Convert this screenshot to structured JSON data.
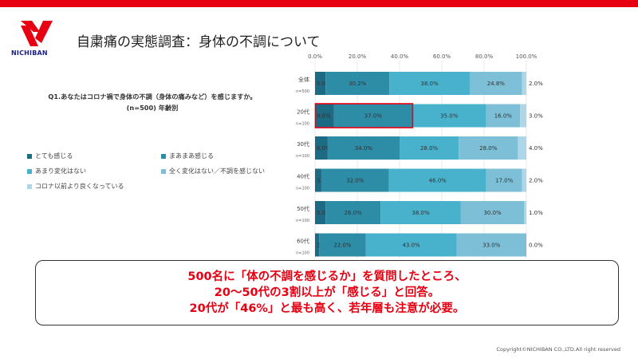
{
  "header": {
    "title": "自粛痛の実態調査：身体の不調について",
    "logo_text": "NICHIBAN",
    "accent_color": "#e60012",
    "brand_color": "#1d2088"
  },
  "question": {
    "line1": "Q1.あなたはコロナ禍で身体の不調（身体の痛みなど）を感じますか。",
    "line2": "(n=500) 年齢別"
  },
  "chart_data": {
    "type": "bar",
    "orientation": "horizontal",
    "stacked": true,
    "xlim": [
      0,
      100
    ],
    "x_ticks": [
      "0.0%",
      "20.0%",
      "40.0%",
      "60.0%",
      "80.0%",
      "100.0%"
    ],
    "categories": [
      "全体",
      "20代",
      "30代",
      "40代",
      "50代",
      "60代"
    ],
    "sample_sizes": [
      "n=500",
      "n=100",
      "n=100",
      "n=100",
      "n=100",
      "n=100"
    ],
    "series": [
      {
        "name": "とても感じる",
        "color": "#1d6a84",
        "values": [
          5.0,
          9.0,
          6.0,
          3.0,
          5.0,
          2.0
        ]
      },
      {
        "name": "まあまあ感じる",
        "color": "#2d8ca6",
        "values": [
          30.2,
          37.0,
          34.0,
          32.0,
          26.0,
          22.0
        ]
      },
      {
        "name": "あまり変化はない",
        "color": "#48b1cc",
        "values": [
          38.0,
          35.0,
          28.0,
          46.0,
          38.0,
          43.0
        ]
      },
      {
        "name": "全く変化はない／不調を感じない",
        "color": "#7cbfd6",
        "values": [
          24.8,
          16.0,
          28.0,
          17.0,
          30.0,
          33.0
        ]
      },
      {
        "name": "コロナ以前より良くなっている",
        "color": "#aed6e6",
        "values": [
          2.0,
          3.0,
          4.0,
          2.0,
          1.0,
          0.0
        ]
      }
    ],
    "highlight": {
      "category": "20代",
      "series": [
        "とても感じる",
        "まあまあ感じる"
      ],
      "color": "#e60012"
    }
  },
  "callout": {
    "line1": "500名に「体の不調を感じるか」を質問したところ、",
    "line2": "20～50代の3割以上が「感じる」と回答。",
    "line3": "20代が「46%」と最も高く、若年層も注意が必要。"
  },
  "footer": {
    "copyright": "Copyright©NICHIBAN CO.,LTD.All right reserved"
  }
}
